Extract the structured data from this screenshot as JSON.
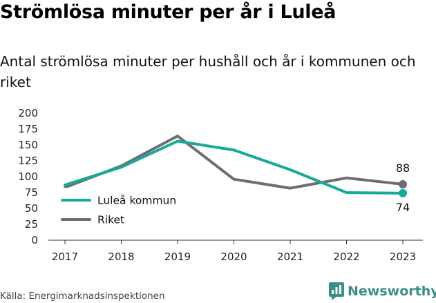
{
  "header": {
    "title": "Strömlösa minuter per år i Luleå",
    "subtitle": "Antal strömlösa minuter per hushåll och år i kommunen och riket"
  },
  "chart_data": {
    "type": "line",
    "title": "Strömlösa minuter per år i Luleå",
    "subtitle": "Antal strömlösa minuter per hushåll och år i kommunen och riket",
    "x": [
      "2017",
      "2018",
      "2019",
      "2020",
      "2021",
      "2022",
      "2023"
    ],
    "ylim": [
      0,
      200
    ],
    "yticks": [
      0,
      25,
      50,
      75,
      100,
      125,
      150,
      175,
      200
    ],
    "grid": false,
    "legend_position": "bottom-left",
    "series": [
      {
        "name": "Luleå kommun",
        "color": "#18a99a",
        "values": [
          87,
          115,
          156,
          142,
          111,
          75,
          74
        ],
        "end_label": "74"
      },
      {
        "name": "Riket",
        "color": "#6e6e70",
        "values": [
          83,
          117,
          164,
          96,
          82,
          98,
          88
        ],
        "end_label": "88"
      }
    ]
  },
  "footer": {
    "source": "Källa: Energimarknadsinspektionen",
    "brand": "Newsworthy",
    "brand_icon": "newsworthy-logo-icon",
    "brand_color": "#3a8f84"
  }
}
